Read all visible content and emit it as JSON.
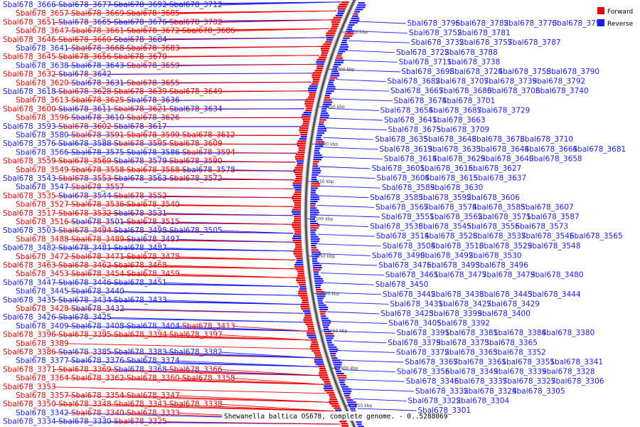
{
  "caption": "Shewanella baltica OS678, complete genome. - 0..5288069",
  "colors": {
    "forward": "#ee0000",
    "reverse": "#1a1aff",
    "backbone": "#555555"
  },
  "legend": [
    {
      "label": "Forward",
      "color": "#ee0000"
    },
    {
      "label": "Reverse",
      "color": "#1a1aff"
    }
  ],
  "ticks": [
    "4350 kbp",
    "4300 kbp",
    "4250 kbp",
    "4200 kbp",
    "4150 kbp",
    "4100 kbp",
    "4050 kbp",
    "4000 kbp",
    "3950 kbp",
    "3900 kbp",
    "3850 kbp"
  ],
  "left_labels": [
    [
      "Sbal678_3666",
      "R"
    ],
    [
      "Sbal678_3677",
      "R"
    ],
    [
      "Sbal678_3692",
      "R"
    ],
    [
      "Sbal678_3712",
      "R"
    ],
    [
      "Sbal678_3657",
      "F"
    ],
    [
      "Sbal678_3669",
      "F"
    ],
    [
      "Sbal678_3685",
      "F"
    ],
    [
      "Sbal678_3651",
      "F"
    ],
    [
      "Sbal678_3665",
      "R"
    ],
    [
      "Sbal678_3676",
      "R"
    ],
    [
      "Sbal678_3702",
      "F"
    ],
    [
      "Sbal678_3647",
      "F"
    ],
    [
      "Sbal678_3661",
      "F"
    ],
    [
      "Sbal678_3672",
      "F"
    ],
    [
      "Sbal678_3686",
      "F"
    ],
    [
      "Sbal678_3646",
      "F"
    ],
    [
      "Sbal678_3660",
      "F"
    ],
    [
      "Sbal678_3684",
      "R"
    ],
    [
      "Sbal678_3641",
      "R"
    ],
    [
      "Sbal678_3668",
      "F"
    ],
    [
      "Sbal678_3683",
      "F"
    ],
    [
      "Sbal678_3645",
      "F"
    ],
    [
      "Sbal678_3656",
      "F"
    ],
    [
      "Sbal678_3670",
      "F"
    ],
    [
      "Sbal678_3638",
      "R"
    ],
    [
      "Sbal678_3643",
      "R"
    ],
    [
      "Sbal678_3659",
      "F"
    ],
    [
      "Sbal678_3632",
      "F"
    ],
    [
      "Sbal678_3642",
      "R"
    ],
    [
      "Sbal678_3620",
      "F"
    ],
    [
      "Sbal678_3631",
      "R"
    ],
    [
      "Sbal678_3655",
      "F"
    ],
    [
      "Sbal678_3618",
      "R"
    ],
    [
      "Sbal678_3628",
      "F"
    ],
    [
      "Sbal678_3639",
      "F"
    ],
    [
      "Sbal678_3649",
      "F"
    ],
    [
      "Sbal678_3613",
      "F"
    ],
    [
      "Sbal678_3625",
      "F"
    ],
    [
      "Sbal678_3636",
      "R"
    ],
    [
      "Sbal678_3600",
      "F"
    ],
    [
      "Sbal678_3611",
      "R"
    ],
    [
      "Sbal678_3621",
      "F"
    ],
    [
      "Sbal678_3634",
      "R"
    ],
    [
      "Sbal678_3596",
      "F"
    ],
    [
      "Sbal678_3610",
      "R"
    ],
    [
      "Sbal678_3626",
      "F"
    ],
    [
      "Sbal678_3593",
      "R"
    ],
    [
      "Sbal678_3602",
      "F"
    ],
    [
      "Sbal678_3617",
      "R"
    ],
    [
      "Sbal678_3580",
      "R"
    ],
    [
      "Sbal678_3591",
      "F"
    ],
    [
      "Sbal678_3599",
      "F"
    ],
    [
      "Sbal678_3612",
      "F"
    ],
    [
      "Sbal678_3576",
      "R"
    ],
    [
      "Sbal678_3588",
      "R"
    ],
    [
      "Sbal678_3595",
      "F"
    ],
    [
      "Sbal678_3609",
      "F"
    ],
    [
      "Sbal678_3566",
      "R"
    ],
    [
      "Sbal678_3575",
      "R"
    ],
    [
      "Sbal678_3586",
      "R"
    ],
    [
      "Sbal678_3594",
      "F"
    ],
    [
      "Sbal678_3559",
      "F"
    ],
    [
      "Sbal678_3569",
      "F"
    ],
    [
      "Sbal678_3579",
      "R"
    ],
    [
      "Sbal678_3590",
      "F"
    ],
    [
      "Sbal678_3549",
      "F"
    ],
    [
      "Sbal678_3558",
      "F"
    ],
    [
      "Sbal678_3568",
      "F"
    ],
    [
      "Sbal678_3578",
      "R"
    ],
    [
      "Sbal678_3543",
      "R"
    ],
    [
      "Sbal678_3553",
      "F"
    ],
    [
      "Sbal678_3563",
      "R"
    ],
    [
      "Sbal678_3572",
      "F"
    ],
    [
      "Sbal678_3547",
      "R"
    ],
    [
      "Sbal678_3557",
      "F"
    ],
    [
      "Sbal678_3535",
      "F"
    ],
    [
      "Sbal678_3544",
      "R"
    ],
    [
      "Sbal678_3552",
      "F"
    ],
    [
      "Sbal678_3527",
      "F"
    ],
    [
      "Sbal678_3536",
      "F"
    ],
    [
      "Sbal678_3540",
      "F"
    ],
    [
      "Sbal678_3517",
      "F"
    ],
    [
      "Sbal678_3532",
      "F"
    ],
    [
      "Sbal678_3531",
      "R"
    ],
    [
      "Sbal678_3516",
      "F"
    ],
    [
      "Sbal678_3501",
      "R"
    ],
    [
      "Sbal678_3515",
      "F"
    ],
    [
      "Sbal678_3503",
      "R"
    ],
    [
      "Sbal678_3494",
      "F"
    ],
    [
      "Sbal678_3498",
      "R"
    ],
    [
      "Sbal678_3505",
      "R"
    ],
    [
      "Sbal678_3488",
      "F"
    ],
    [
      "Sbal678_3489",
      "F"
    ],
    [
      "Sbal678_3497",
      "R"
    ],
    [
      "Sbal678_3482",
      "R"
    ],
    [
      "Sbal678_3481",
      "R"
    ],
    [
      "Sbal678_3487",
      "R"
    ],
    [
      "Sbal678_3472",
      "F"
    ],
    [
      "Sbal678_3471",
      "F"
    ],
    [
      "Sbal678_3478",
      "F"
    ],
    [
      "Sbal678_3463",
      "F"
    ],
    [
      "Sbal678_3462",
      "F"
    ],
    [
      "Sbal678_3468",
      "F"
    ],
    [
      "Sbal678_3453",
      "F"
    ],
    [
      "Sbal678_3454",
      "F"
    ],
    [
      "Sbal678_3459",
      "F"
    ],
    [
      "Sbal678_3447",
      "R"
    ],
    [
      "Sbal678_3446",
      "R"
    ],
    [
      "Sbal678_3451",
      "R"
    ],
    [
      "Sbal678_3445",
      "R"
    ],
    [
      "Sbal678_3440",
      "R"
    ],
    [
      "Sbal678_3435",
      "R"
    ],
    [
      "Sbal678_3434",
      "R"
    ],
    [
      "Sbal678_3433",
      "R"
    ],
    [
      "Sbal678_3428",
      "F"
    ],
    [
      "Sbal678_3432",
      "R"
    ],
    [
      "Sbal678_3426",
      "R"
    ],
    [
      "Sbal678_3425",
      "R"
    ],
    [
      "Sbal678_3409",
      "R"
    ],
    [
      "Sbal678_3408",
      "R"
    ],
    [
      "Sbal678_3404",
      "R"
    ],
    [
      "Sbal678_3413",
      "F"
    ],
    [
      "Sbal678_3396",
      "F"
    ],
    [
      "Sbal678_3395",
      "F"
    ],
    [
      "Sbal678_3394",
      "F"
    ],
    [
      "Sbal678_3397",
      "F"
    ],
    [
      "Sbal678_3389",
      "F"
    ],
    [
      "Sbal678_3386",
      "F"
    ],
    [
      "Sbal678_3385",
      "R"
    ],
    [
      "Sbal678_3383",
      "R"
    ],
    [
      "Sbal678_3382",
      "R"
    ],
    [
      "Sbal678_3377",
      "R"
    ],
    [
      "Sbal678_3376",
      "R"
    ],
    [
      "Sbal678_3374",
      "R"
    ],
    [
      "Sbal678_3371",
      "F"
    ],
    [
      "Sbal678_3369",
      "F"
    ],
    [
      "Sbal678_3368",
      "R"
    ],
    [
      "Sbal678_3366",
      "F"
    ],
    [
      "Sbal678_3364",
      "F"
    ],
    [
      "Sbal678_3362",
      "F"
    ],
    [
      "Sbal678_3360",
      "F"
    ],
    [
      "Sbal678_3358",
      "F"
    ],
    [
      "Sbal678_3353",
      "F"
    ],
    [
      "Sbal678_3357",
      "F"
    ],
    [
      "Sbal678_3354",
      "F"
    ],
    [
      "Sbal678_3347",
      "F"
    ],
    [
      "Sbal678_3350",
      "F"
    ],
    [
      "Sbal678_3348",
      "F"
    ],
    [
      "Sbal678_3343",
      "F"
    ],
    [
      "Sbal678_3338",
      "F"
    ],
    [
      "Sbal678_3342",
      "R"
    ],
    [
      "Sbal678_3340",
      "F"
    ],
    [
      "Sbal678_3333",
      "F"
    ],
    [
      "Sbal678_3334",
      "R"
    ],
    [
      "Sbal678_3330",
      "R"
    ],
    [
      "Sbal678_3325",
      "F"
    ]
  ],
  "right_labels": [
    "Sbal678_3796",
    "Sbal678_3782",
    "Sbal678_3770",
    "Sbal678_3797",
    "Sbal678_3752",
    "Sbal678_3781",
    "Sbal678_3732",
    "Sbal678_3757",
    "Sbal678_3787",
    "Sbal678_3722",
    "Sbal678_3788",
    "Sbal678_3711",
    "Sbal678_3738",
    "Sbal678_3698",
    "Sbal678_3724",
    "Sbal678_3758",
    "Sbal678_3790",
    "Sbal678_3682",
    "Sbal678_3707",
    "Sbal678_3739",
    "Sbal678_3792",
    "Sbal678_3667",
    "Sbal678_3680",
    "Sbal678_3708",
    "Sbal678_3740",
    "Sbal678_3774",
    "Sbal678_3674",
    "Sbal678_3701",
    "Sbal678_3654",
    "Sbal678_3687",
    "Sbal678_3729",
    "Sbal678_3641",
    "Sbal678_3663",
    "Sbal678_3675",
    "Sbal678_3709",
    "Sbal678_3635",
    "Sbal678_3648",
    "Sbal678_3678",
    "Sbal678_3710",
    "Sbal678_3619",
    "Sbal678_3633",
    "Sbal678_3644",
    "Sbal678_3664",
    "Sbal678_3681",
    "Sbal678_3614",
    "Sbal678_3629",
    "Sbal678_3640",
    "Sbal678_3658",
    "Sbal678_3601",
    "Sbal678_3616",
    "Sbal678_3627",
    "Sbal678_3604",
    "Sbal678_3615",
    "Sbal678_3637",
    "Sbal678_3589",
    "Sbal678_3630",
    "Sbal678_3583",
    "Sbal678_3592",
    "Sbal678_3606",
    "Sbal678_3567",
    "Sbal678_3574",
    "Sbal678_3585",
    "Sbal678_3607",
    "Sbal678_3551",
    "Sbal678_3562",
    "Sbal678_3571",
    "Sbal678_3587",
    "Sbal678_3538",
    "Sbal678_3545",
    "Sbal678_3556",
    "Sbal678_3573",
    "Sbal678_3514",
    "Sbal678_3528",
    "Sbal678_3537",
    "Sbal678_3546",
    "Sbal678_3565",
    "Sbal678_3504",
    "Sbal678_3510",
    "Sbal678_3529",
    "Sbal678_3548",
    "Sbal678_3490",
    "Sbal678_3492",
    "Sbal678_3530",
    "Sbal678_3476",
    "Sbal678_3493",
    "Sbal678_3496",
    "Sbal678_3461",
    "Sbal678_3477",
    "Sbal678_3479",
    "Sbal678_3480",
    "Sbal678_3450",
    "Sbal678_3442",
    "Sbal678_3438",
    "Sbal678_3443",
    "Sbal678_3444",
    "Sbal678_3431",
    "Sbal678_3427",
    "Sbal678_3429",
    "Sbal678_3423",
    "Sbal678_3399",
    "Sbal678_3400",
    "Sbal678_3405",
    "Sbal678_3392",
    "Sbal678_3391",
    "Sbal678_3381",
    "Sbal678_3384",
    "Sbal678_3380",
    "Sbal678_3379",
    "Sbal678_3373",
    "Sbal678_3365",
    "Sbal678_3372",
    "Sbal678_3363",
    "Sbal678_3352",
    "Sbal678_3367",
    "Sbal678_3361",
    "Sbal678_3351",
    "Sbal678_3341",
    "Sbal678_3356",
    "Sbal678_3349",
    "Sbal678_3339",
    "Sbal678_3328",
    "Sbal678_3346",
    "Sbal678_3337",
    "Sbal678_3327",
    "Sbal678_3306",
    "Sbal678_3332",
    "Sbal678_3324",
    "Sbal678_3305",
    "Sbal678_3322",
    "Sbal678_3304",
    "Sbal678_3301"
  ]
}
